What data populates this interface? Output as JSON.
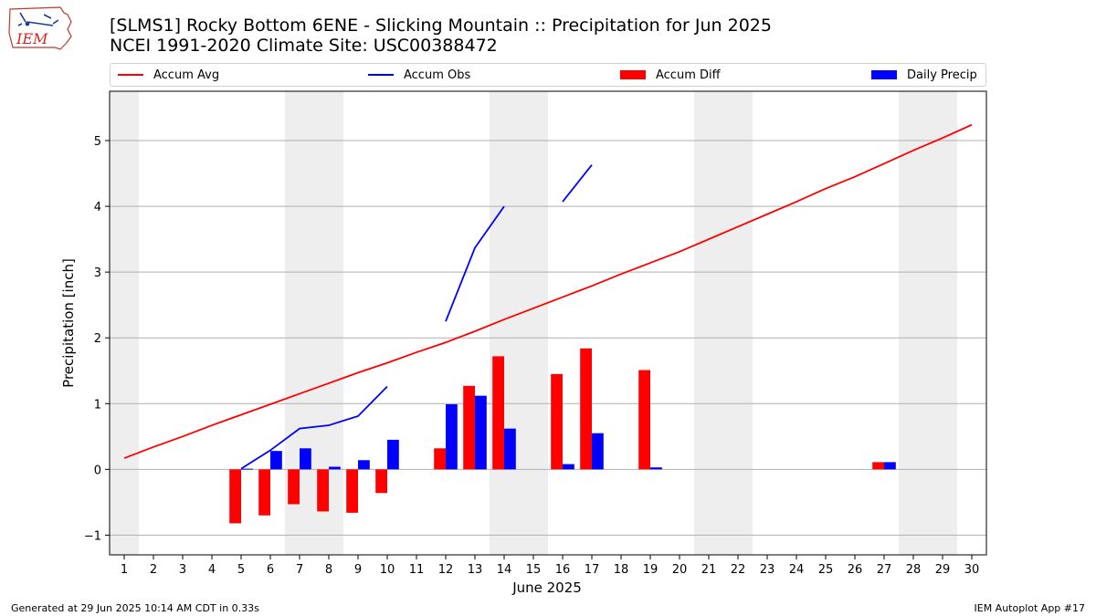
{
  "header": {
    "title_line1": "[SLMS1] Rocky Bottom 6ENE - Slicking Mountain :: Precipitation for Jun 2025",
    "title_line2": "NCEI 1991-2020 Climate Site: USC00388472"
  },
  "logo": {
    "text": "IEM"
  },
  "footer": {
    "left": "Generated at 29 Jun 2025 10:14 AM CDT in 0.33s",
    "right": "IEM Autoplot App #17"
  },
  "colors": {
    "avg": "#ff0000",
    "obs": "#0000ff",
    "diff": "#ff0000",
    "daily": "#0000ff",
    "weekend_band": "#eeeeee",
    "grid": "#b0b0b0"
  },
  "chart_data": {
    "type": "bar",
    "xlabel": "June 2025",
    "ylabel": "Precipitation [inch]",
    "ylim": [
      -1.3,
      5.75
    ],
    "yticks": [
      -1,
      0,
      1,
      2,
      3,
      4,
      5
    ],
    "xlim": [
      0.5,
      30.5
    ],
    "days": [
      1,
      2,
      3,
      4,
      5,
      6,
      7,
      8,
      9,
      10,
      11,
      12,
      13,
      14,
      15,
      16,
      17,
      18,
      19,
      20,
      21,
      22,
      23,
      24,
      25,
      26,
      27,
      28,
      29,
      30
    ],
    "grid": "horizontal",
    "legend_position": "top",
    "weekend_bands": [
      [
        0.5,
        1.5
      ],
      [
        6.5,
        8.5
      ],
      [
        13.5,
        15.5
      ],
      [
        20.5,
        22.5
      ],
      [
        27.5,
        29.5
      ]
    ],
    "series": [
      {
        "name": "Accum Avg",
        "kind": "line",
        "x": [
          1,
          2,
          3,
          4,
          5,
          6,
          7,
          8,
          9,
          10,
          11,
          12,
          13,
          14,
          15,
          16,
          17,
          18,
          19,
          20,
          21,
          22,
          23,
          24,
          25,
          26,
          27,
          28,
          29,
          30
        ],
        "y": [
          0.17,
          0.34,
          0.5,
          0.67,
          0.83,
          0.99,
          1.15,
          1.31,
          1.47,
          1.62,
          1.78,
          1.93,
          2.1,
          2.28,
          2.45,
          2.62,
          2.79,
          2.97,
          3.14,
          3.31,
          3.5,
          3.69,
          3.88,
          4.07,
          4.27,
          4.45,
          4.65,
          4.85,
          5.04,
          5.24
        ]
      },
      {
        "name": "Accum Obs",
        "kind": "line",
        "segments": [
          {
            "x": [
              5,
              6,
              7,
              8,
              9,
              10
            ],
            "y": [
              0.01,
              0.29,
              0.62,
              0.67,
              0.81,
              1.26
            ]
          },
          {
            "x": [
              12,
              13,
              14
            ],
            "y": [
              2.25,
              3.37,
              4.0
            ]
          },
          {
            "x": [
              16,
              17
            ],
            "y": [
              4.07,
              4.63
            ]
          }
        ]
      },
      {
        "name": "Accum Diff",
        "kind": "bar",
        "x": [
          5,
          6,
          7,
          8,
          9,
          10,
          12,
          13,
          14,
          16,
          17,
          19,
          27
        ],
        "y": [
          -0.82,
          -0.7,
          -0.53,
          -0.64,
          -0.66,
          -0.36,
          0.32,
          1.27,
          1.72,
          1.45,
          1.84,
          1.51,
          0.11
        ]
      },
      {
        "name": "Daily Precip",
        "kind": "bar",
        "x": [
          5,
          6,
          7,
          8,
          9,
          10,
          12,
          13,
          14,
          16,
          17,
          19,
          27
        ],
        "y": [
          0.01,
          0.28,
          0.32,
          0.04,
          0.14,
          0.45,
          0.99,
          1.12,
          0.62,
          0.08,
          0.55,
          0.03,
          0.11
        ]
      }
    ]
  }
}
